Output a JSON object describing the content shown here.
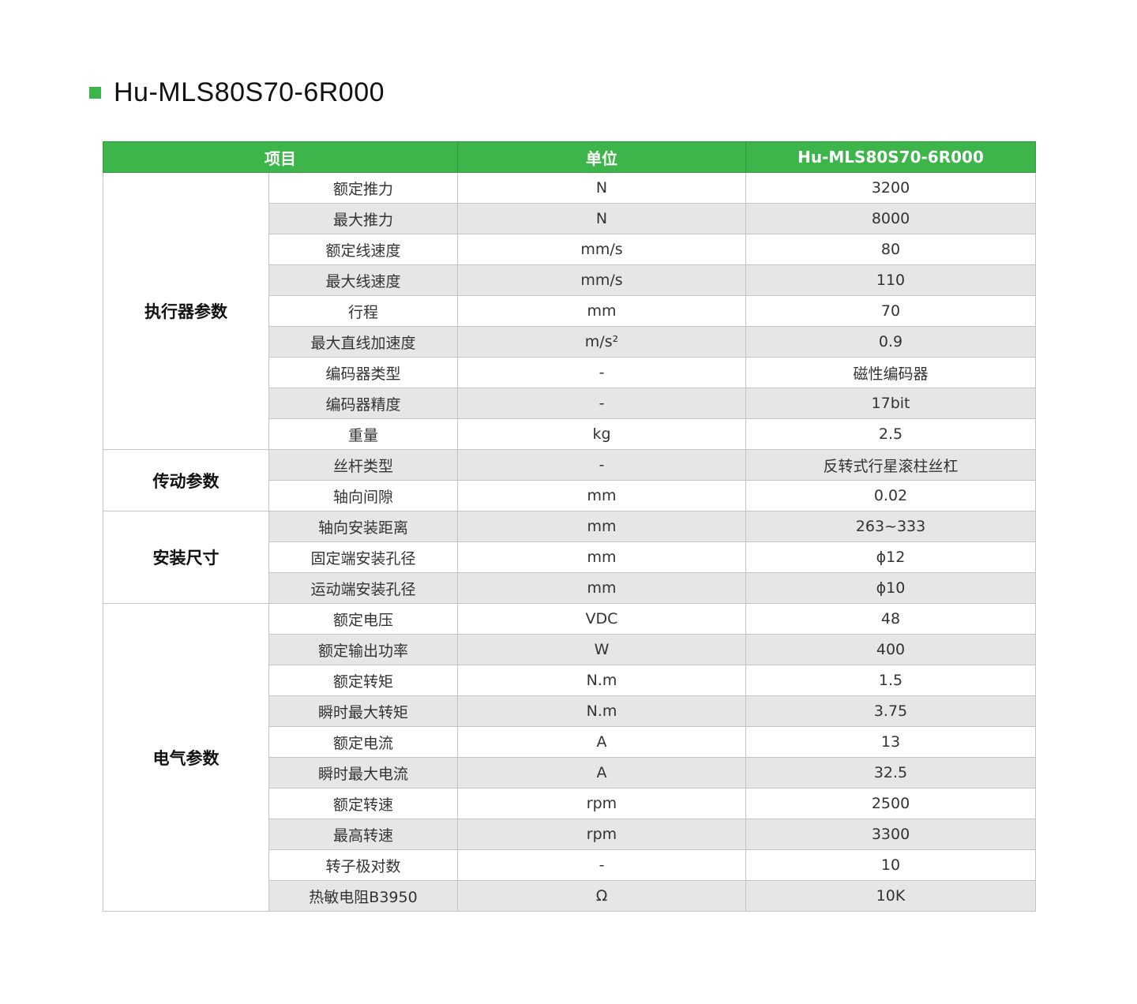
{
  "title": "Hu-MLS80S70-6R000",
  "accent_color": "#3cb54a",
  "headers": [
    "项目",
    "单位",
    "Hu-MLS80S70-6R000"
  ],
  "groups": [
    {
      "name": "执行器参数",
      "rows": [
        [
          "额定推力",
          "N",
          "3200"
        ],
        [
          "最大推力",
          "N",
          "8000"
        ],
        [
          "额定线速度",
          "mm/s",
          "80"
        ],
        [
          "最大线速度",
          "mm/s",
          "110"
        ],
        [
          "行程",
          "mm",
          "70"
        ],
        [
          "最大直线加速度",
          "m/s²",
          "0.9"
        ],
        [
          "编码器类型",
          "-",
          "磁性编码器"
        ],
        [
          "编码器精度",
          "-",
          "17bit"
        ],
        [
          "重量",
          "kg",
          "2.5"
        ]
      ]
    },
    {
      "name": "传动参数",
      "rows": [
        [
          "丝杆类型",
          "-",
          "反转式行星滚柱丝杠"
        ],
        [
          "轴向间隙",
          "mm",
          "0.02"
        ]
      ]
    },
    {
      "name": "安装尺寸",
      "rows": [
        [
          "轴向安装距离",
          "mm",
          "263~333"
        ],
        [
          "固定端安装孔径",
          "mm",
          "ϕ12"
        ],
        [
          "运动端安装孔径",
          "mm",
          "ϕ10"
        ]
      ]
    },
    {
      "name": "电气参数",
      "rows": [
        [
          "额定电压",
          "VDC",
          "48"
        ],
        [
          "额定输出功率",
          "W",
          "400"
        ],
        [
          "额定转矩",
          "N.m",
          "1.5"
        ],
        [
          "瞬时最大转矩",
          "N.m",
          "3.75"
        ],
        [
          "额定电流",
          "A",
          "13"
        ],
        [
          "瞬时最大电流",
          "A",
          "32.5"
        ],
        [
          "额定转速",
          "rpm",
          "2500"
        ],
        [
          "最高转速",
          "rpm",
          "3300"
        ],
        [
          "转子极对数",
          "-",
          "10"
        ],
        [
          "热敏电阻B3950",
          "Ω",
          "10K"
        ]
      ]
    }
  ]
}
